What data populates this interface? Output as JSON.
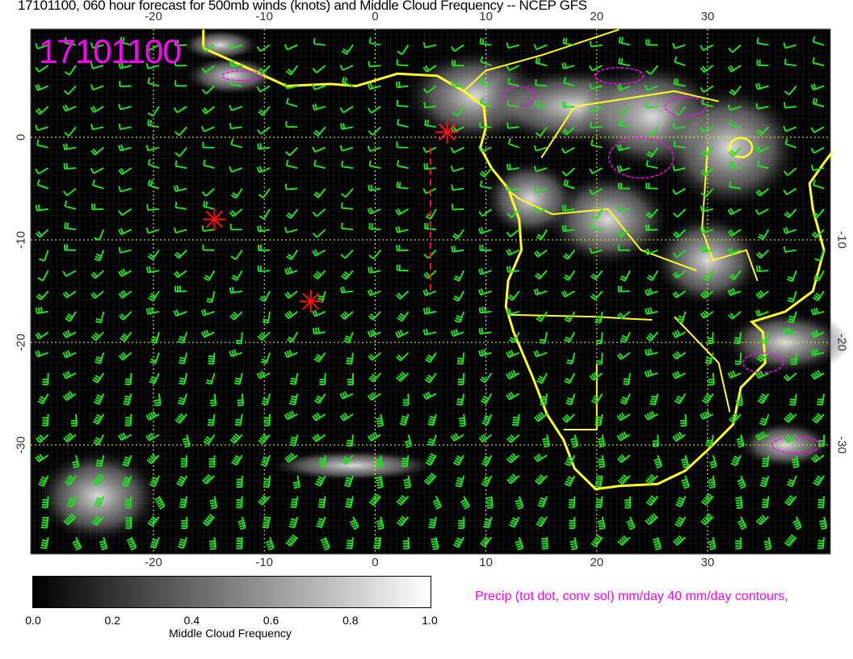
{
  "title": "17101100, 060 hour forecast for 500mb winds (knots) and Middle Cloud Frequency -- NCEP GFS",
  "stamp": "17101100",
  "lon_ticks": [
    "-20",
    "-10",
    "0",
    "10",
    "20",
    "30"
  ],
  "lon_values": [
    -20,
    -10,
    0,
    10,
    20,
    30
  ],
  "lat_ticks_left": [
    "0",
    "-10",
    "-20",
    "-30"
  ],
  "lat_values_left": [
    0,
    -10,
    -20,
    -30
  ],
  "lat_ticks_right": [
    "-10",
    "-20",
    "-30"
  ],
  "lat_values_right": [
    -10,
    -20,
    -30
  ],
  "map_extent": {
    "lon": [
      -31,
      41
    ],
    "lat": [
      10.5,
      -40.5
    ]
  },
  "colorbar": {
    "labels": [
      "0.0",
      "0.2",
      "0.4",
      "0.6",
      "0.8",
      "1.0"
    ],
    "title": "Middle Cloud Frequency"
  },
  "precip_label": "Precip (tot dot, conv sol) mm/day 40 mm/day contours,",
  "colors": {
    "barbs": "#22dd22",
    "coast": "#ffff22",
    "precip": "#ff00ff",
    "markers": "#ff1010",
    "background": "#000000"
  },
  "markers": [
    {
      "lon": 6.5,
      "lat": 0.5
    },
    {
      "lon": -14.5,
      "lat": -8
    },
    {
      "lon": -5.8,
      "lat": -16
    }
  ]
}
